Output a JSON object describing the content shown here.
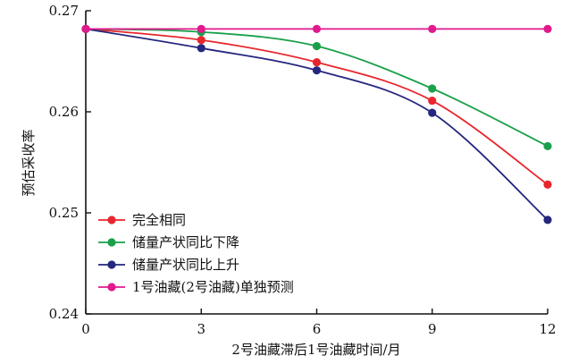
{
  "chart_data": {
    "type": "line",
    "xlabel": "2号油藏滞后1号油藏时间/月",
    "ylabel": "预估采收率",
    "x": [
      0,
      3,
      6,
      9,
      12
    ],
    "xticks": [
      "0",
      "3",
      "6",
      "9",
      "12"
    ],
    "yticks": [
      "0.24",
      "0.25",
      "0.26",
      "0.27"
    ],
    "xlim": [
      0,
      12
    ],
    "ylim": [
      0.24,
      0.27
    ],
    "grid": false,
    "legend_position": "bottom-left",
    "series": [
      {
        "name": "完全相同",
        "color": "#e8262d",
        "values": [
          0.2682,
          0.2671,
          0.2649,
          0.2611,
          0.2528
        ]
      },
      {
        "name": "储量产状同比下降",
        "color": "#1aa04a",
        "values": [
          0.2682,
          0.2679,
          0.2665,
          0.2623,
          0.2566
        ]
      },
      {
        "name": "储量产状同比上升",
        "color": "#25267e",
        "values": [
          0.2682,
          0.2663,
          0.2641,
          0.2599,
          0.2493
        ]
      },
      {
        "name": "1号油藏(2号油藏)单独预测",
        "color": "#e0198c",
        "values": [
          0.2682,
          0.2682,
          0.2682,
          0.2682,
          0.2682
        ]
      }
    ]
  }
}
